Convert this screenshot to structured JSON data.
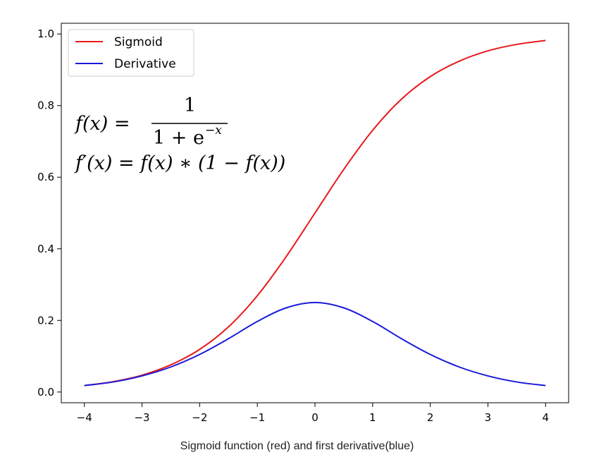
{
  "chart_data": {
    "type": "line",
    "x": [
      -4,
      -3.5,
      -3,
      -2.5,
      -2,
      -1.5,
      -1,
      -0.5,
      0,
      0.5,
      1,
      1.5,
      2,
      2.5,
      3,
      3.5,
      4
    ],
    "series": [
      {
        "name": "Sigmoid",
        "color": "#e8191c",
        "values": [
          0.018,
          0.029,
          0.047,
          0.076,
          0.119,
          0.182,
          0.269,
          0.378,
          0.5,
          0.622,
          0.731,
          0.818,
          0.881,
          0.924,
          0.953,
          0.971,
          0.982
        ]
      },
      {
        "name": "Derivative",
        "color": "#1a1adb",
        "values": [
          0.018,
          0.028,
          0.045,
          0.07,
          0.105,
          0.149,
          0.197,
          0.235,
          0.25,
          0.235,
          0.197,
          0.149,
          0.105,
          0.07,
          0.045,
          0.028,
          0.018
        ]
      }
    ],
    "xlim": [
      -4.4,
      4.4
    ],
    "ylim": [
      -0.03,
      1.03
    ],
    "xticks": [
      -4,
      -3,
      -2,
      -1,
      0,
      1,
      2,
      3,
      4
    ],
    "xtick_labels": [
      "−4",
      "−3",
      "−2",
      "−1",
      "0",
      "1",
      "2",
      "3",
      "4"
    ],
    "yticks": [
      0.0,
      0.2,
      0.4,
      0.6,
      0.8,
      1.0
    ],
    "ytick_labels": [
      "0.0",
      "0.2",
      "0.4",
      "0.6",
      "0.8",
      "1.0"
    ],
    "grid": false,
    "legend_position": "upper-left",
    "annotations": {
      "formula1_lhs": "f(x) =",
      "formula1_numerator": "1",
      "formula1_denominator": "1 + e",
      "formula1_exponent": "−x",
      "formula2": "f′(x) = f(x) ∗ (1  − f(x))"
    }
  },
  "caption": "Sigmoid function (red) and first derivative(blue)"
}
